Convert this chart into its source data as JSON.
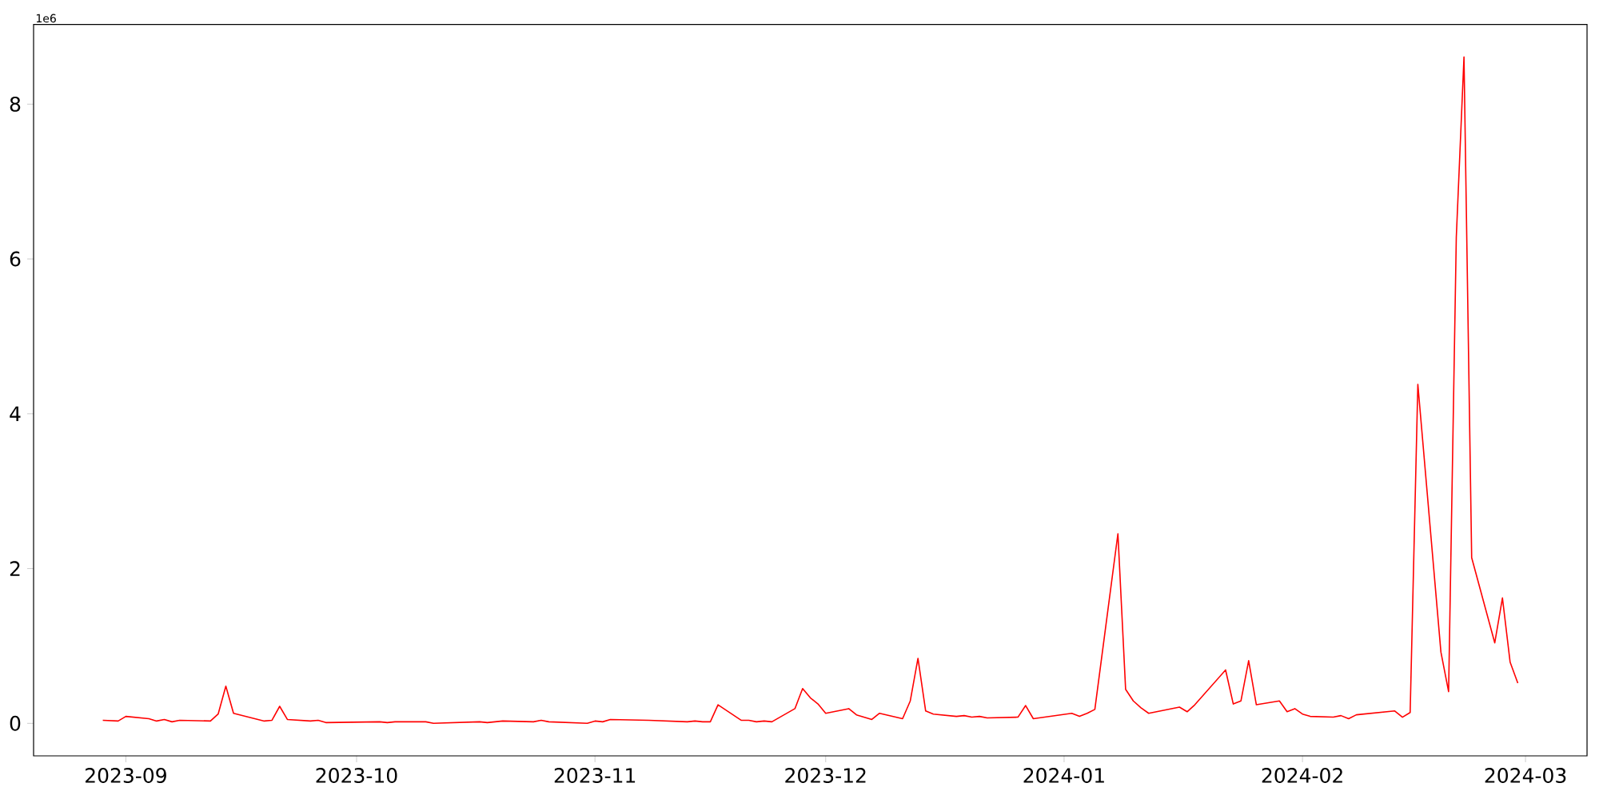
{
  "chart_data": {
    "type": "line",
    "color": "#ff0000",
    "x": [
      "2023-08-29",
      "2023-08-31",
      "2023-09-01",
      "2023-09-04",
      "2023-09-05",
      "2023-09-06",
      "2023-09-07",
      "2023-09-08",
      "2023-09-12",
      "2023-09-13",
      "2023-09-14",
      "2023-09-15",
      "2023-09-19",
      "2023-09-20",
      "2023-09-21",
      "2023-09-22",
      "2023-09-25",
      "2023-09-26",
      "2023-09-27",
      "2023-10-04",
      "2023-10-05",
      "2023-10-06",
      "2023-10-10",
      "2023-10-11",
      "2023-10-17",
      "2023-10-18",
      "2023-10-20",
      "2023-10-24",
      "2023-10-25",
      "2023-10-26",
      "2023-10-31",
      "2023-11-01",
      "2023-11-02",
      "2023-11-03",
      "2023-11-08",
      "2023-11-13",
      "2023-11-14",
      "2023-11-15",
      "2023-11-16",
      "2023-11-17",
      "2023-11-20",
      "2023-11-21",
      "2023-11-22",
      "2023-11-23",
      "2023-11-24",
      "2023-11-27",
      "2023-11-28",
      "2023-11-29",
      "2023-11-30",
      "2023-12-01",
      "2023-12-04",
      "2023-12-05",
      "2023-12-07",
      "2023-12-08",
      "2023-12-11",
      "2023-12-12",
      "2023-12-13",
      "2023-12-14",
      "2023-12-15",
      "2023-12-18",
      "2023-12-19",
      "2023-12-20",
      "2023-12-21",
      "2023-12-22",
      "2023-12-26",
      "2023-12-27",
      "2023-12-28",
      "2024-01-02",
      "2024-01-03",
      "2024-01-04",
      "2024-01-05",
      "2024-01-08",
      "2024-01-09",
      "2024-01-10",
      "2024-01-11",
      "2024-01-12",
      "2024-01-16",
      "2024-01-17",
      "2024-01-18",
      "2024-01-22",
      "2024-01-23",
      "2024-01-24",
      "2024-01-25",
      "2024-01-26",
      "2024-01-29",
      "2024-01-30",
      "2024-01-31",
      "2024-02-01",
      "2024-02-02",
      "2024-02-05",
      "2024-02-06",
      "2024-02-07",
      "2024-02-08",
      "2024-02-13",
      "2024-02-14",
      "2024-02-15",
      "2024-02-16",
      "2024-02-19",
      "2024-02-20",
      "2024-02-21",
      "2024-02-22",
      "2024-02-23",
      "2024-02-26",
      "2024-02-27",
      "2024-02-28",
      "2024-02-29"
    ],
    "values": [
      0.04,
      0.03,
      0.09,
      0.06,
      0.03,
      0.05,
      0.02,
      0.04,
      0.03,
      0.12,
      0.48,
      0.13,
      0.03,
      0.04,
      0.22,
      0.05,
      0.03,
      0.04,
      0.01,
      0.02,
      0.01,
      0.02,
      0.02,
      0.0,
      0.02,
      0.01,
      0.03,
      0.02,
      0.04,
      0.02,
      0.0,
      0.03,
      0.02,
      0.05,
      0.04,
      0.02,
      0.03,
      0.02,
      0.02,
      0.24,
      0.04,
      0.04,
      0.02,
      0.03,
      0.02,
      0.19,
      0.45,
      0.33,
      0.25,
      0.13,
      0.19,
      0.11,
      0.05,
      0.13,
      0.06,
      0.29,
      0.84,
      0.16,
      0.12,
      0.09,
      0.1,
      0.08,
      0.09,
      0.07,
      0.08,
      0.23,
      0.06,
      0.13,
      0.09,
      0.13,
      0.18,
      2.45,
      0.44,
      0.29,
      0.2,
      0.13,
      0.21,
      0.15,
      0.24,
      0.69,
      0.25,
      0.29,
      0.81,
      0.24,
      0.29,
      0.15,
      0.19,
      0.12,
      0.09,
      0.08,
      0.1,
      0.06,
      0.11,
      0.16,
      0.08,
      0.14,
      4.38,
      0.92,
      0.41,
      6.28,
      8.61,
      2.14,
      1.04,
      1.62,
      0.79,
      0.52
    ],
    "xlim": [
      "2023-08-20",
      "2024-03-09"
    ],
    "xticks": [
      "2023-09",
      "2023-10",
      "2023-11",
      "2023-12",
      "2024-01",
      "2024-02",
      "2024-03"
    ],
    "ylim": [
      -0.42,
      9.03
    ],
    "yticks": [
      0,
      2,
      4,
      6,
      8
    ],
    "annotations": [
      "1e6"
    ]
  }
}
